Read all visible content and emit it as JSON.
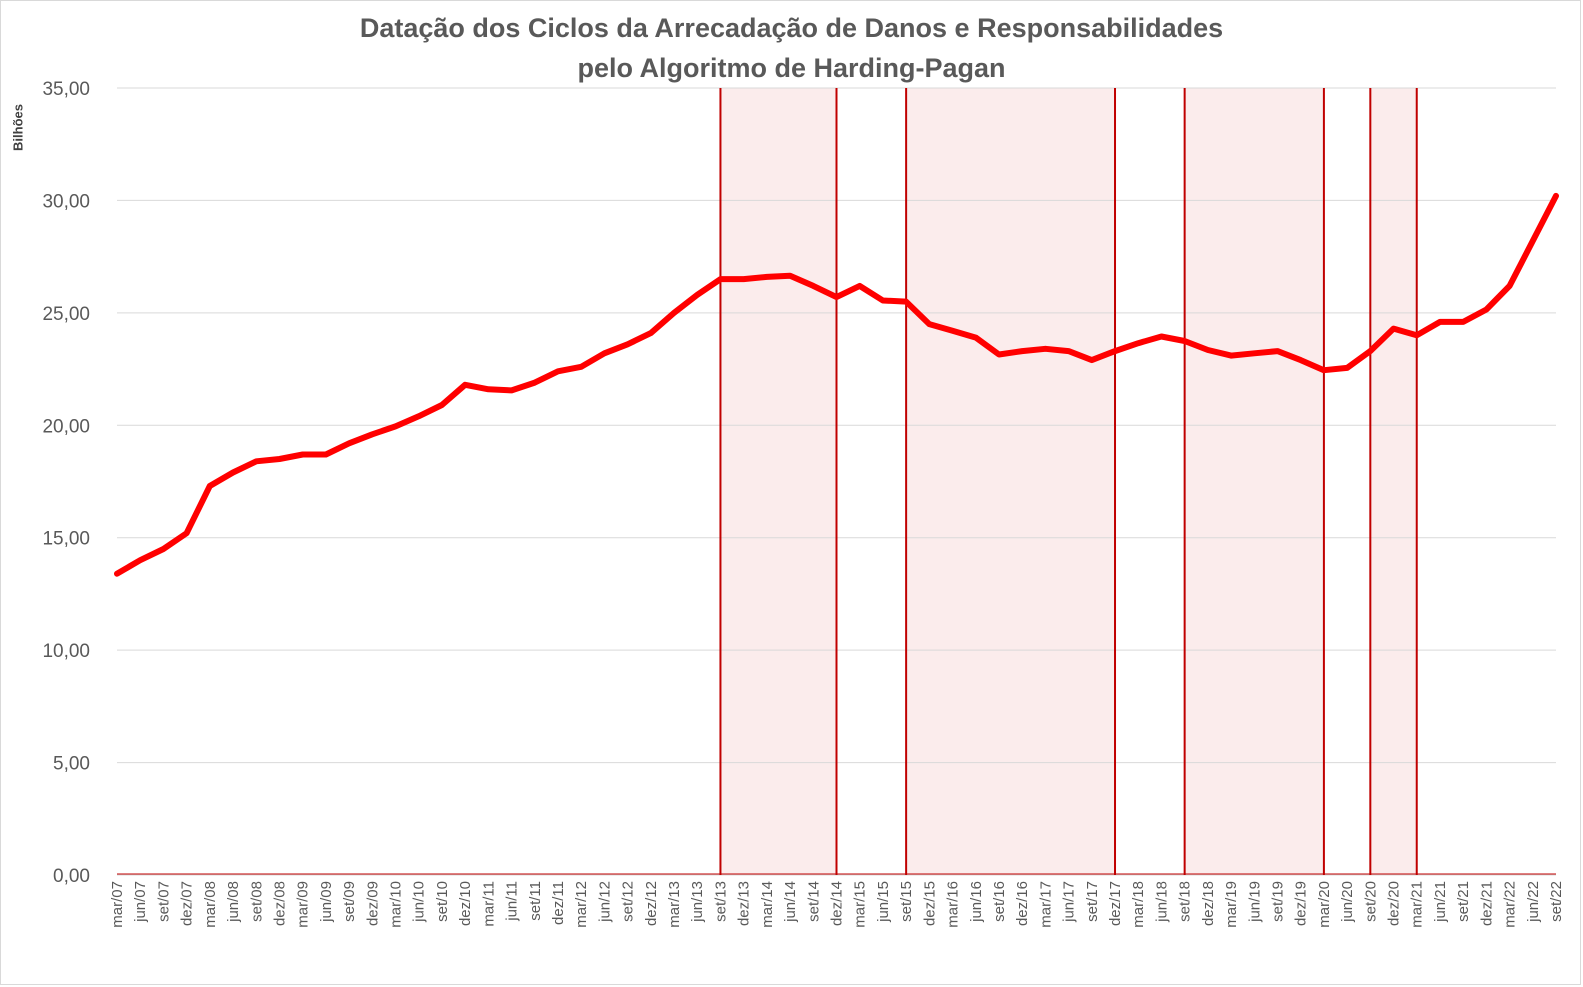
{
  "chart_data": {
    "type": "line",
    "title": [
      "Datação dos Ciclos da Arrecadação de Danos e Responsabilidades",
      "pelo Algoritmo de Harding-Pagan"
    ],
    "unit_label": "Bilhões",
    "ylim": [
      0,
      35
    ],
    "y_ticks": [
      "0,00",
      "5,00",
      "10,00",
      "15,00",
      "20,00",
      "25,00",
      "30,00",
      "35,00"
    ],
    "grid": true,
    "categories": [
      "mar/07",
      "jun/07",
      "set/07",
      "dez/07",
      "mar/08",
      "jun/08",
      "set/08",
      "dez/08",
      "mar/09",
      "jun/09",
      "set/09",
      "dez/09",
      "mar/10",
      "jun/10",
      "set/10",
      "dez/10",
      "mar/11",
      "jun/11",
      "set/11",
      "dez/11",
      "mar/12",
      "jun/12",
      "set/12",
      "dez/12",
      "mar/13",
      "jun/13",
      "set/13",
      "dez/13",
      "mar/14",
      "jun/14",
      "set/14",
      "dez/14",
      "mar/15",
      "jun/15",
      "set/15",
      "dez/15",
      "mar/16",
      "jun/16",
      "set/16",
      "dez/16",
      "mar/17",
      "jun/17",
      "set/17",
      "dez/17",
      "mar/18",
      "jun/18",
      "set/18",
      "dez/18",
      "mar/19",
      "jun/19",
      "set/19",
      "dez/19",
      "mar/20",
      "jun/20",
      "set/20",
      "dez/20",
      "mar/21",
      "jun/21",
      "set/21",
      "dez/21",
      "mar/22",
      "jun/22",
      "set/22"
    ],
    "series": [
      {
        "color": "#ff0000",
        "values": [
          13.4,
          14.0,
          14.5,
          15.2,
          17.3,
          17.9,
          18.4,
          18.5,
          18.7,
          18.7,
          19.2,
          19.6,
          19.95,
          20.4,
          20.9,
          21.8,
          21.6,
          21.55,
          21.9,
          22.4,
          22.6,
          23.2,
          23.6,
          24.1,
          25.0,
          25.8,
          26.5,
          26.5,
          26.6,
          26.65,
          26.2,
          25.7,
          26.2,
          25.55,
          25.5,
          24.5,
          24.2,
          23.9,
          23.15,
          23.3,
          23.4,
          23.3,
          22.9,
          23.3,
          23.65,
          23.95,
          23.75,
          23.35,
          23.1,
          23.2,
          23.3,
          22.9,
          22.45,
          22.55,
          23.3,
          24.3,
          24.0,
          24.6,
          24.6,
          25.15,
          26.2,
          28.2,
          30.2
        ]
      }
    ],
    "cycle_bands": [
      {
        "start": "set/13",
        "end": "dez/14"
      },
      {
        "start": "set/15",
        "end": "dez/17"
      },
      {
        "start": "set/18",
        "end": "mar/20"
      },
      {
        "start": "set/20",
        "end": "mar/21"
      }
    ],
    "band_fill": "#fbecec",
    "band_line": "#c00000",
    "grid_color": "#d9d9d9"
  }
}
